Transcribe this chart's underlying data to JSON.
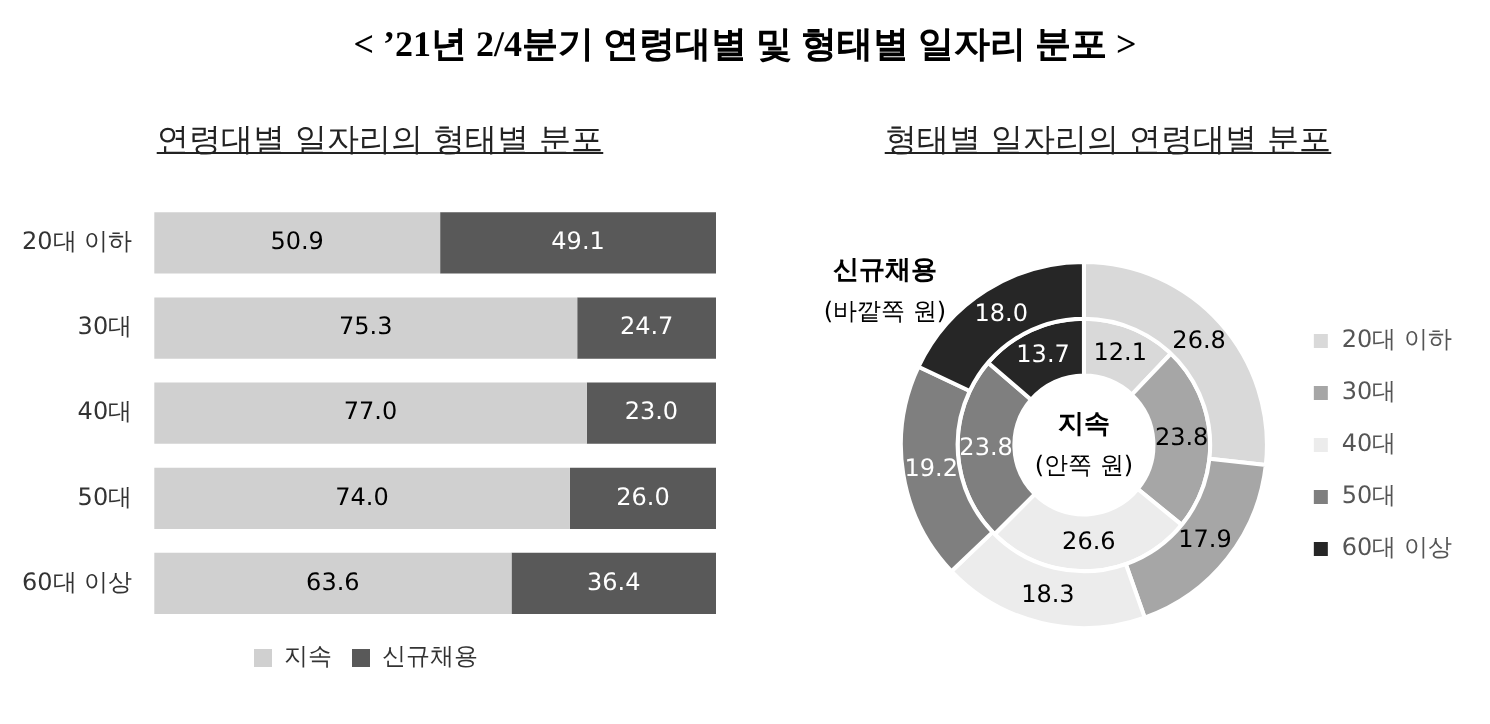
{
  "chart_data": [
    {
      "type": "bar",
      "title": "< ’21년 2/4분기 연령대별 및 형태별 일자리 분포 >",
      "subtitle": "연령대별 일자리의 형태별 분포",
      "orientation": "horizontal",
      "stacked": true,
      "categories": [
        "20대 이하",
        "30대",
        "40대",
        "50대",
        "60대 이상"
      ],
      "series": [
        {
          "name": "지속",
          "color": "#d0d0d0",
          "values": [
            50.9,
            75.3,
            77.0,
            74.0,
            63.6
          ],
          "value_labels": [
            "50.9",
            "75.3",
            "77.0",
            "74.0",
            "63.6"
          ]
        },
        {
          "name": "신규채용",
          "color": "#595959",
          "values": [
            49.1,
            24.7,
            23.0,
            26.0,
            36.4
          ],
          "value_labels": [
            "49.1",
            "24.7",
            "23.0",
            "26.0",
            "36.4"
          ]
        }
      ],
      "legend": "bottom",
      "tick_labels": "y"
    },
    {
      "type": "donut",
      "subtitle": "형태별 일자리의 연령대별 분포",
      "categories": [
        "20대 이하",
        "30대",
        "40대",
        "50대",
        "60대 이상"
      ],
      "colors": [
        "#d9d9d9",
        "#a6a6a6",
        "#ececec",
        "#7f7f7f",
        "#262626"
      ],
      "series": [
        {
          "name": "지속 (안쪽 원)",
          "values": [
            12.1,
            23.8,
            26.6,
            23.8,
            13.7
          ],
          "value_labels": [
            "12.1",
            "23.8",
            "26.6",
            "23.8",
            "13.7"
          ]
        },
        {
          "name": "신규채용 (바깥쪽 원)",
          "values": [
            26.8,
            17.9,
            18.3,
            19.2,
            18.0
          ],
          "value_labels": [
            "26.8",
            "17.9",
            "18.3",
            "19.2",
            "18.0"
          ]
        }
      ],
      "legend": "right"
    }
  ]
}
